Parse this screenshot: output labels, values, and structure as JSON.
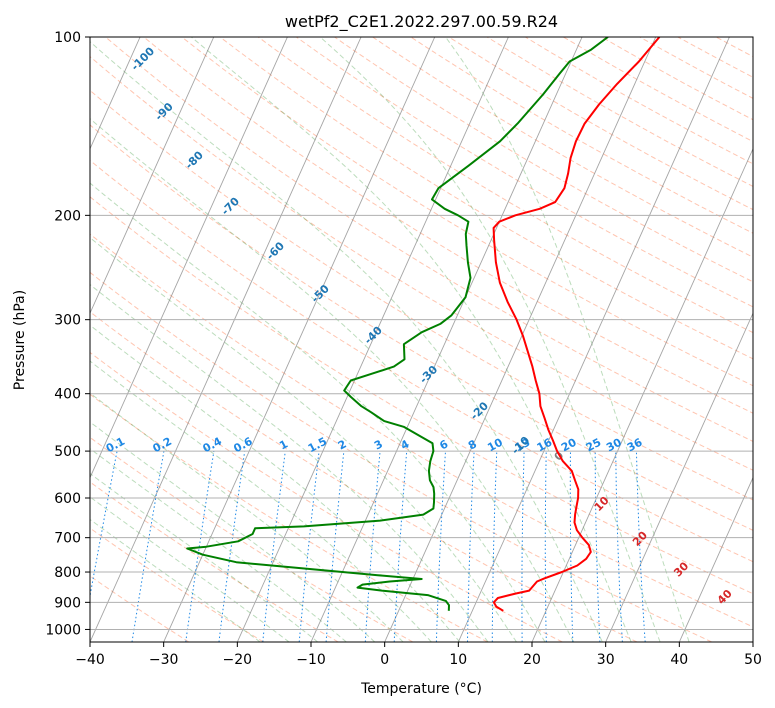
{
  "chart_data": {
    "type": "line",
    "subtype": "skew-t log-p diagram",
    "title": "wetPf2_C2E1.2022.297.00.59.R24",
    "xlabel": "Temperature (°C)",
    "ylabel": "Pressure (hPa)",
    "xlim": [
      -40,
      50
    ],
    "ylim": [
      1050,
      100
    ],
    "yscale": "log",
    "grid": true,
    "x_ticks": [
      "−40",
      "−30",
      "−20",
      "−10",
      "0",
      "10",
      "20",
      "30",
      "40",
      "50"
    ],
    "y_ticks": [
      "100",
      "200",
      "300",
      "400",
      "500",
      "600",
      "700",
      "800",
      "900",
      "1000"
    ],
    "series": [
      {
        "color": "#ff0000",
        "points": [
          [
            14.2,
            930
          ],
          [
            13.0,
            915
          ],
          [
            12.4,
            900
          ],
          [
            12.7,
            885
          ],
          [
            14.8,
            870
          ],
          [
            16.5,
            860
          ],
          [
            17.0,
            830
          ],
          [
            17.8,
            820
          ],
          [
            19.8,
            800
          ],
          [
            21.5,
            780
          ],
          [
            22.3,
            760
          ],
          [
            22.5,
            740
          ],
          [
            21.8,
            720
          ],
          [
            20.5,
            700
          ],
          [
            19.3,
            680
          ],
          [
            18.5,
            660
          ],
          [
            18.1,
            640
          ],
          [
            17.8,
            620
          ],
          [
            17.5,
            600
          ],
          [
            17.0,
            580
          ],
          [
            16.0,
            560
          ],
          [
            15.0,
            540
          ],
          [
            13.2,
            520
          ],
          [
            11.8,
            500
          ],
          [
            10.6,
            480
          ],
          [
            9.3,
            460
          ],
          [
            8.1,
            440
          ],
          [
            6.8,
            420
          ],
          [
            5.9,
            400
          ],
          [
            4.6,
            380
          ],
          [
            3.3,
            360
          ],
          [
            1.8,
            340
          ],
          [
            0.2,
            320
          ],
          [
            -1.7,
            300
          ],
          [
            -4.0,
            280
          ],
          [
            -6.2,
            260
          ],
          [
            -8.0,
            240
          ],
          [
            -9.6,
            220
          ],
          [
            -10.4,
            210
          ],
          [
            -10.0,
            205
          ],
          [
            -8.2,
            200
          ],
          [
            -5.3,
            195
          ],
          [
            -3.6,
            190
          ],
          [
            -3.2,
            180
          ],
          [
            -3.6,
            170
          ],
          [
            -4.2,
            160
          ],
          [
            -4.5,
            150
          ],
          [
            -4.4,
            140
          ],
          [
            -3.6,
            130
          ],
          [
            -2.4,
            120
          ],
          [
            -0.8,
            110
          ],
          [
            0.5,
            100
          ]
        ]
      },
      {
        "color": "#008000",
        "points": [
          [
            6.8,
            930
          ],
          [
            6.5,
            910
          ],
          [
            5.8,
            895
          ],
          [
            3.0,
            875
          ],
          [
            -3.5,
            860
          ],
          [
            -7.0,
            850
          ],
          [
            -6.5,
            840
          ],
          [
            -3.0,
            830
          ],
          [
            1.2,
            822
          ],
          [
            -5.0,
            810
          ],
          [
            -15.0,
            790
          ],
          [
            -25.0,
            770
          ],
          [
            -30.0,
            748
          ],
          [
            -32.5,
            730
          ],
          [
            -30.0,
            725
          ],
          [
            -26.0,
            710
          ],
          [
            -24.5,
            690
          ],
          [
            -24.5,
            675
          ],
          [
            -18.0,
            670
          ],
          [
            -8.0,
            655
          ],
          [
            -2.5,
            640
          ],
          [
            -1.5,
            625
          ],
          [
            -1.8,
            610
          ],
          [
            -2.3,
            590
          ],
          [
            -2.8,
            575
          ],
          [
            -3.7,
            560
          ],
          [
            -4.4,
            540
          ],
          [
            -4.8,
            520
          ],
          [
            -5.0,
            500
          ],
          [
            -5.6,
            485
          ],
          [
            -7.2,
            475
          ],
          [
            -10.5,
            455
          ],
          [
            -13.5,
            445
          ],
          [
            -15.8,
            430
          ],
          [
            -17.5,
            420
          ],
          [
            -19.5,
            405
          ],
          [
            -20.8,
            395
          ],
          [
            -20.5,
            380
          ],
          [
            -18.0,
            370
          ],
          [
            -15.5,
            360
          ],
          [
            -14.5,
            350
          ],
          [
            -15.0,
            340
          ],
          [
            -15.5,
            330
          ],
          [
            -13.8,
            315
          ],
          [
            -11.8,
            305
          ],
          [
            -10.8,
            295
          ],
          [
            -10.0,
            275
          ],
          [
            -10.5,
            255
          ],
          [
            -11.8,
            240
          ],
          [
            -13.0,
            225
          ],
          [
            -13.8,
            215
          ],
          [
            -14.2,
            205
          ],
          [
            -16.0,
            200
          ],
          [
            -18.2,
            195
          ],
          [
            -20.5,
            188
          ],
          [
            -20.3,
            180
          ],
          [
            -17.6,
            165
          ],
          [
            -14.8,
            150
          ],
          [
            -13.5,
            140
          ],
          [
            -11.8,
            125
          ],
          [
            -10.8,
            115
          ],
          [
            -10.2,
            110
          ],
          [
            -8.0,
            105
          ],
          [
            -6.5,
            100
          ]
        ]
      }
    ],
    "background_lines": {
      "isotherm_skew_color": "#7f7f7f",
      "dry_adiabat_color": "#ff7f50",
      "moist_adiabat_color": "#228b22",
      "mixing_ratio_color": "#1e88e5",
      "theta_label_color": "#1f77b4",
      "temp_label_color": "#d62728",
      "zero_label_color": "#7f7f7f"
    },
    "label_sets": {
      "skew_temperature_labels": [
        "-100",
        "-90",
        "-80",
        "-70",
        "-60",
        "-50",
        "-40",
        "-30",
        "-20",
        "-10",
        "0",
        "10",
        "20",
        "30",
        "40"
      ],
      "mixing_ratio_labels": [
        "0.1",
        "0.2",
        "0.4",
        "0.6",
        "1",
        "1.5",
        "2",
        "3",
        "4",
        "6",
        "8",
        "10",
        "13",
        "16",
        "20",
        "25",
        "30",
        "36"
      ]
    }
  }
}
